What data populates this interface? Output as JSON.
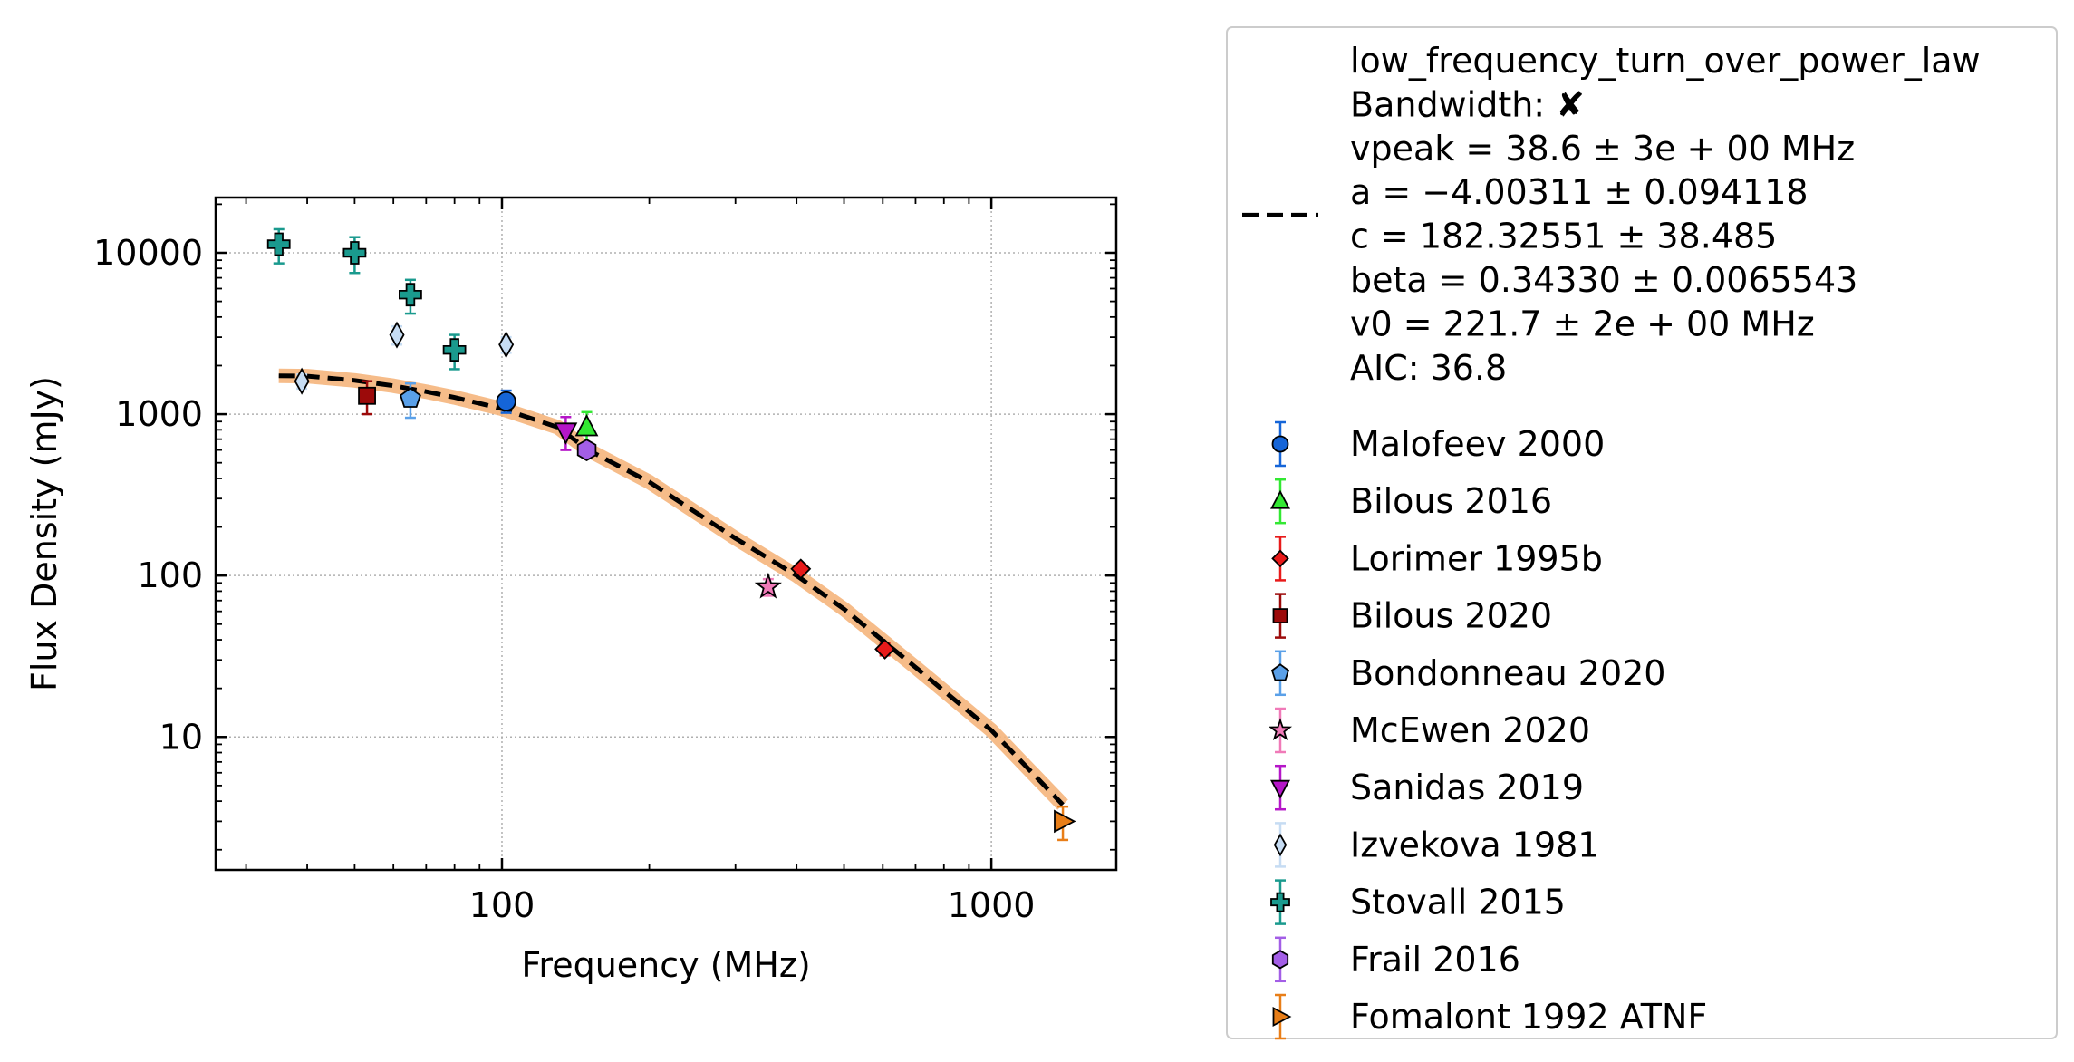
{
  "chart_data": {
    "type": "scatter",
    "xlabel": "Frequency (MHz)",
    "ylabel": "Flux Density (mJy)",
    "xscale": "log",
    "yscale": "log",
    "xlim": [
      26,
      1800
    ],
    "ylim": [
      1.5,
      22000
    ],
    "grid": true,
    "legend_position": "outside-right",
    "x_ticks": [
      {
        "value": 100,
        "label": "100"
      },
      {
        "value": 1000,
        "label": "1000"
      }
    ],
    "y_ticks": [
      {
        "value": 10,
        "label": "10"
      },
      {
        "value": 100,
        "label": "100"
      },
      {
        "value": 1000,
        "label": "1000"
      },
      {
        "value": 10000,
        "label": "10000"
      }
    ],
    "fit": {
      "label_lines": [
        "low_frequency_turn_over_power_law",
        "Bandwidth: ✘",
        "vpeak = 38.6 ± 3e + 00 MHz",
        "a = −4.00311 ± 0.094118",
        "c = 182.32551 ± 38.485",
        "beta = 0.34330 ± 0.0065543",
        "v0 = 221.7 ± 2e + 00 MHz",
        "AIC: 36.8"
      ],
      "line_color": "#000000",
      "band_color": "#f5b57c",
      "curve": [
        {
          "x": 35,
          "y": 1730
        },
        {
          "x": 40,
          "y": 1720
        },
        {
          "x": 50,
          "y": 1620
        },
        {
          "x": 60,
          "y": 1500
        },
        {
          "x": 70,
          "y": 1380
        },
        {
          "x": 80,
          "y": 1270
        },
        {
          "x": 100,
          "y": 1080
        },
        {
          "x": 130,
          "y": 830
        },
        {
          "x": 150,
          "y": 600
        },
        {
          "x": 200,
          "y": 380
        },
        {
          "x": 300,
          "y": 170
        },
        {
          "x": 400,
          "y": 100
        },
        {
          "x": 500,
          "y": 62
        },
        {
          "x": 700,
          "y": 27
        },
        {
          "x": 1000,
          "y": 11
        },
        {
          "x": 1400,
          "y": 3.8
        }
      ]
    },
    "series": [
      {
        "name": "Malofeev 2000",
        "color": "#1565d8",
        "marker": "circle",
        "points": [
          {
            "x": 102,
            "y": 1200,
            "err_lo": 180,
            "err_hi": 200
          }
        ]
      },
      {
        "name": "Bilous 2016",
        "color": "#33e833",
        "marker": "triangle-up",
        "points": [
          {
            "x": 149,
            "y": 830,
            "err_lo": 170,
            "err_hi": 200
          }
        ]
      },
      {
        "name": "Lorimer 1995b",
        "color": "#e81a1a",
        "marker": "diamond",
        "points": [
          {
            "x": 408,
            "y": 110,
            "err_lo": 8,
            "err_hi": 8
          },
          {
            "x": 606,
            "y": 35,
            "err_lo": 3,
            "err_hi": 3
          }
        ]
      },
      {
        "name": "Bilous 2020",
        "color": "#9c0a0a",
        "marker": "square",
        "points": [
          {
            "x": 53,
            "y": 1300,
            "err_lo": 300,
            "err_hi": 300
          }
        ]
      },
      {
        "name": "Bondonneau 2020",
        "color": "#5aa0e8",
        "marker": "pentagon",
        "points": [
          {
            "x": 65,
            "y": 1250,
            "err_lo": 300,
            "err_hi": 300
          }
        ]
      },
      {
        "name": "McEwen 2020",
        "color": "#f07ab8",
        "marker": "star",
        "points": [
          {
            "x": 350,
            "y": 85,
            "err_lo": 10,
            "err_hi": 10
          }
        ]
      },
      {
        "name": "Sanidas 2019",
        "color": "#b516c8",
        "marker": "triangle-down",
        "points": [
          {
            "x": 135,
            "y": 780,
            "err_lo": 180,
            "err_hi": 180
          }
        ]
      },
      {
        "name": "Izvekova 1981",
        "color": "#c6dcf3",
        "marker": "thin-diamond",
        "points": [
          {
            "x": 39,
            "y": 1600,
            "err_lo": 160,
            "err_hi": 160
          },
          {
            "x": 61,
            "y": 3100,
            "err_lo": 400,
            "err_hi": 400
          },
          {
            "x": 102,
            "y": 2700,
            "err_lo": 300,
            "err_hi": 300
          }
        ]
      },
      {
        "name": "Stovall 2015",
        "color": "#1a9a8e",
        "marker": "plus",
        "points": [
          {
            "x": 35,
            "y": 11300,
            "err_lo": 2700,
            "err_hi": 2700
          },
          {
            "x": 50,
            "y": 10000,
            "err_lo": 2500,
            "err_hi": 2500
          },
          {
            "x": 65,
            "y": 5500,
            "err_lo": 1300,
            "err_hi": 1300
          },
          {
            "x": 80,
            "y": 2500,
            "err_lo": 600,
            "err_hi": 600
          }
        ]
      },
      {
        "name": "Frail 2016",
        "color": "#a35ee6",
        "marker": "hexagon",
        "points": [
          {
            "x": 149,
            "y": 600,
            "err_lo": 60,
            "err_hi": 60
          }
        ]
      },
      {
        "name": "Fomalont 1992 ATNF",
        "color": "#e87e18",
        "marker": "triangle-right",
        "points": [
          {
            "x": 1400,
            "y": 3.0,
            "err_lo": 0.7,
            "err_hi": 0.7
          }
        ]
      }
    ]
  }
}
